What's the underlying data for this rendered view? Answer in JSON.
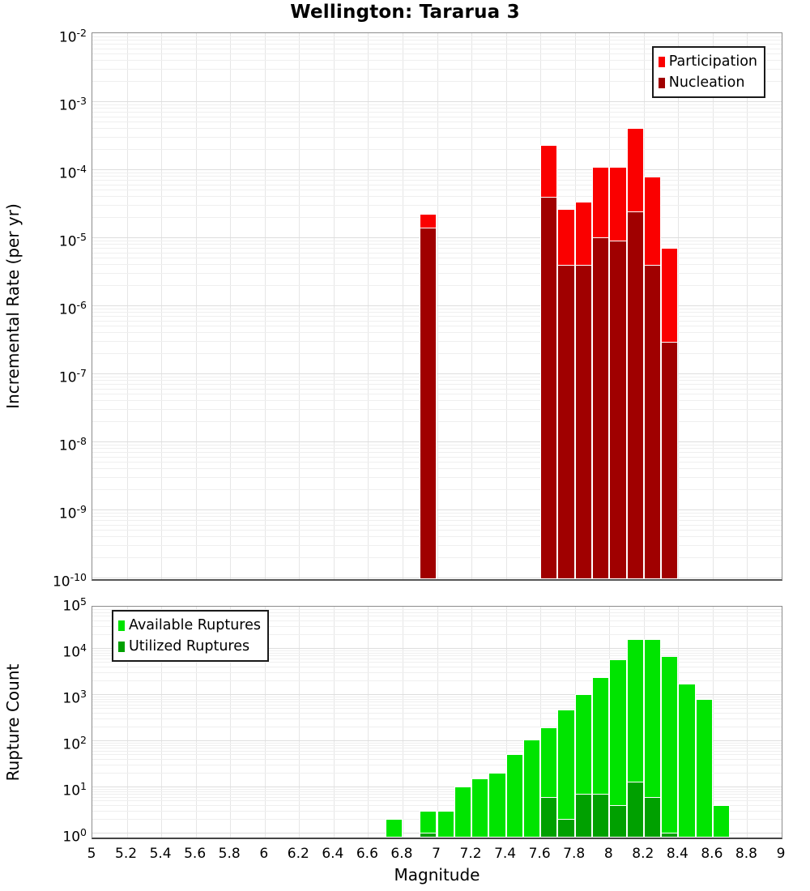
{
  "chart_data": [
    {
      "type": "bar",
      "title": "Wellington: Tararua 3",
      "ylabel": "Incremental Rate (per yr)",
      "xlabel": "",
      "yscale": "log",
      "ylim": [
        1e-10,
        0.01
      ],
      "y_tick_exponents": [
        -2,
        -3,
        -4,
        -5,
        -6,
        -7,
        -8,
        -9,
        -10
      ],
      "bin_width": 0.1,
      "grid": true,
      "legend_position": "top-right",
      "series": [
        {
          "name": "Participation",
          "color": "#FA0000",
          "mags": [
            6.95,
            7.65,
            7.75,
            7.85,
            7.95,
            8.05,
            8.15,
            8.25,
            8.35
          ],
          "values": [
            2.2e-05,
            0.00023,
            2.6e-05,
            3.3e-05,
            0.00011,
            0.00011,
            0.0004,
            7.8e-05,
            7e-06
          ]
        },
        {
          "name": "Nucleation",
          "color": "#A00000",
          "mags": [
            6.95,
            7.65,
            7.75,
            7.85,
            7.95,
            8.05,
            8.15,
            8.25,
            8.35
          ],
          "values": [
            1.4e-05,
            3.9e-05,
            3.9e-06,
            3.9e-06,
            1e-05,
            9e-06,
            2.4e-05,
            3.9e-06,
            2.9e-07
          ]
        }
      ]
    },
    {
      "type": "bar",
      "title": "",
      "ylabel": "Rupture Count",
      "xlabel": "Magnitude",
      "yscale": "log",
      "ylim": [
        1,
        100000.0
      ],
      "y_tick_exponents": [
        5,
        4,
        3,
        2,
        1,
        0
      ],
      "xlim": [
        5,
        9
      ],
      "x_ticks": [
        5,
        5.2,
        5.4,
        5.6,
        5.8,
        6,
        6.2,
        6.4,
        6.6,
        6.8,
        7,
        7.2,
        7.4,
        7.6,
        7.8,
        8,
        8.2,
        8.4,
        8.6,
        8.8,
        9
      ],
      "bin_width": 0.1,
      "grid": true,
      "legend_position": "top-left",
      "series": [
        {
          "name": "Available Ruptures",
          "color": "#00E400",
          "mags": [
            6.75,
            6.95,
            7.05,
            7.15,
            7.25,
            7.35,
            7.45,
            7.55,
            7.65,
            7.75,
            7.85,
            7.95,
            8.05,
            8.15,
            8.25,
            8.35,
            8.45,
            8.55,
            8.65
          ],
          "values": [
            2,
            3,
            3,
            10,
            15,
            20,
            50,
            105,
            190,
            460,
            1000,
            2300,
            5800,
            15500,
            15500,
            6800,
            1700,
            800,
            4
          ]
        },
        {
          "name": "Utilized Ruptures",
          "color": "#00A000",
          "mags": [
            6.95,
            7.65,
            7.75,
            7.85,
            7.95,
            8.05,
            8.15,
            8.25,
            8.35
          ],
          "values": [
            1,
            6,
            2,
            7,
            7,
            4,
            13,
            6,
            1
          ]
        }
      ]
    }
  ]
}
